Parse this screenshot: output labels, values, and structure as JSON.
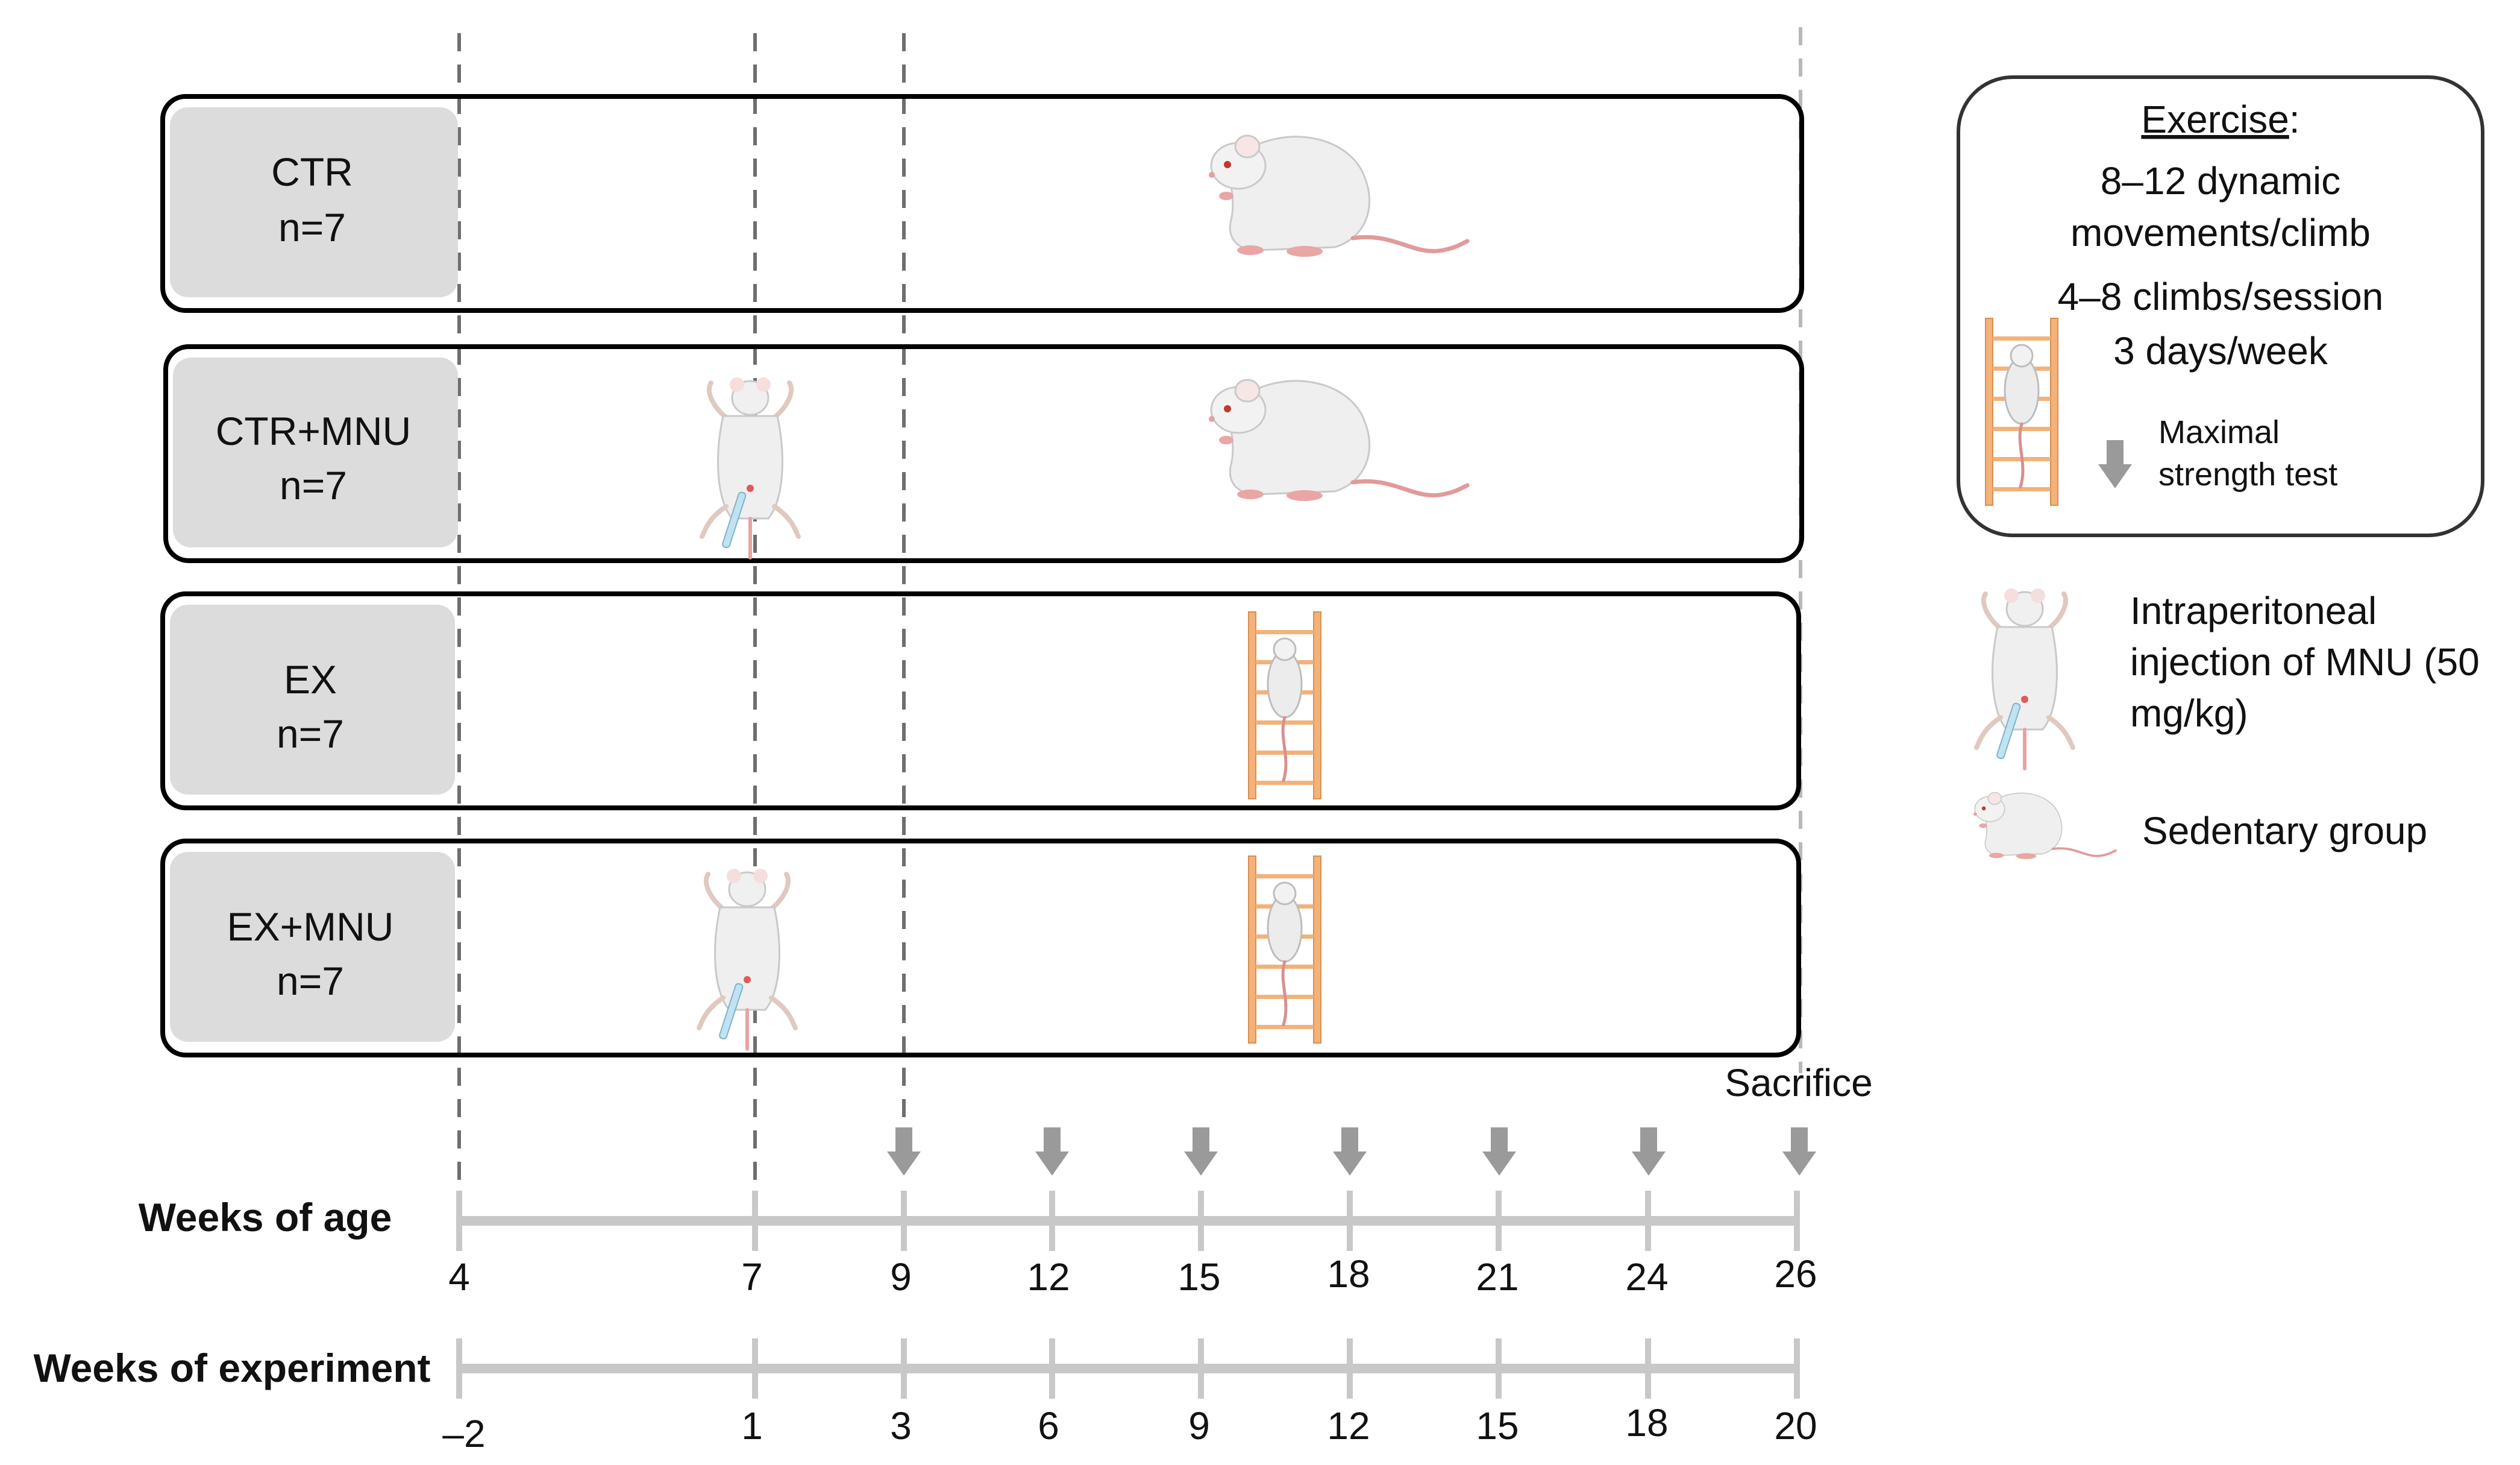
{
  "groups": [
    {
      "name": "CTR",
      "n": "n=7"
    },
    {
      "name": "CTR+MNU",
      "n": "n=7"
    },
    {
      "name": "EX",
      "n": "n=7"
    },
    {
      "name": "EX+MNU",
      "n": "n=7"
    }
  ],
  "exercise_box": {
    "title": "Exercise",
    "title_suffix": ":",
    "line1": "8–12 dynamic",
    "line2": "movements/climb",
    "line3": "4–8 climbs/session",
    "line4": "3 days/week",
    "arrow_label1": "Maximal",
    "arrow_label2": "strength  test"
  },
  "legend": {
    "injection_line1": "Intraperitoneal",
    "injection_line2": "injection of MNU (50",
    "injection_line3": "mg/kg)",
    "sedentary": "Sedentary group"
  },
  "sacrifice_label": "Sacrifice",
  "axes": {
    "age_label": "Weeks of age",
    "age_ticks": [
      "4",
      "7",
      "9",
      "12",
      "15",
      "18",
      "21",
      "24",
      "26"
    ],
    "experiment_label": "Weeks of experiment",
    "experiment_ticks": [
      "–2",
      "1",
      "3",
      "6",
      "9",
      "12",
      "15",
      "18",
      "20"
    ]
  },
  "colors": {
    "ladder": "#f2b27a",
    "rat_body": "#eeeeee",
    "tail": "#e7a3a3",
    "arrow": "#9a9a9a",
    "axis": "#c8c8c8",
    "label_box": "#dcdcdc"
  }
}
